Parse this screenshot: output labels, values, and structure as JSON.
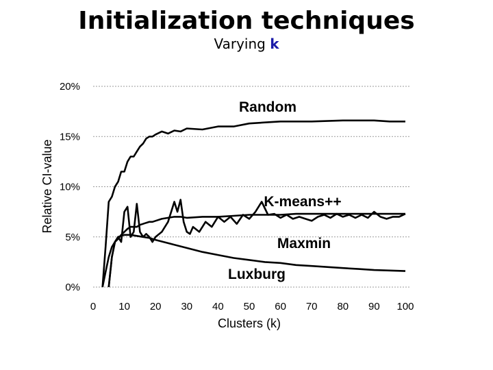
{
  "slide": {
    "title": "Initialization techniques",
    "subtitle_prefix": "Varying ",
    "subtitle_var": "k"
  },
  "chart_data": {
    "type": "line",
    "title": "",
    "xlabel": "Clusters (k)",
    "ylabel": "Relative CI-value",
    "xlim": [
      0,
      100
    ],
    "ylim": [
      0,
      20
    ],
    "xticks": [
      "0",
      "10",
      "20",
      "30",
      "40",
      "50",
      "60",
      "70",
      "80",
      "90",
      "100"
    ],
    "yticks": [
      "0%",
      "5%",
      "10%",
      "15%",
      "20%"
    ],
    "grid": "horizontal",
    "series": [
      {
        "name": "Random",
        "x": [
          3,
          4,
          5,
          6,
          7,
          8,
          9,
          10,
          11,
          12,
          13,
          14,
          15,
          16,
          17,
          18,
          19,
          20,
          22,
          24,
          26,
          28,
          30,
          35,
          40,
          45,
          50,
          55,
          60,
          70,
          80,
          90,
          95,
          100
        ],
        "values": [
          0,
          4,
          8.5,
          9,
          10,
          10.5,
          11.5,
          11.5,
          12.5,
          13,
          13,
          13.5,
          14,
          14.3,
          14.8,
          15,
          15,
          15.2,
          15.5,
          15.3,
          15.6,
          15.5,
          15.8,
          15.7,
          16,
          16,
          16.3,
          16.4,
          16.5,
          16.5,
          16.6,
          16.6,
          16.5,
          16.5
        ]
      },
      {
        "name": "K-means++",
        "x": [
          3,
          4,
          5,
          6,
          7,
          8,
          9,
          10,
          11,
          12,
          13,
          14,
          15,
          16,
          17,
          18,
          19,
          20,
          22,
          24,
          26,
          28,
          30,
          35,
          40,
          45,
          50,
          55,
          60,
          65,
          70,
          75,
          80,
          85,
          90,
          95,
          100
        ],
        "values": [
          0,
          1.5,
          3,
          4,
          4.5,
          4.8,
          5.2,
          5.5,
          5.8,
          6,
          6,
          6,
          6.2,
          6.3,
          6.4,
          6.5,
          6.5,
          6.6,
          6.8,
          6.9,
          7,
          7,
          6.9,
          7,
          7,
          7.1,
          7.2,
          7.2,
          7.2,
          7.3,
          7.3,
          7.3,
          7.3,
          7.3,
          7.3,
          7.3,
          7.3
        ]
      },
      {
        "name": "Maxmin",
        "x": [
          5,
          6,
          7,
          8,
          9,
          10,
          11,
          12,
          13,
          14,
          15,
          16,
          17,
          18,
          19,
          20,
          22,
          24,
          26,
          27,
          28,
          29,
          30,
          31,
          32,
          34,
          36,
          38,
          40,
          42,
          44,
          46,
          48,
          50,
          52,
          54,
          56,
          58,
          60,
          62,
          64,
          66,
          68,
          70,
          72,
          74,
          76,
          78,
          80,
          82,
          84,
          86,
          88,
          90,
          92,
          94,
          96,
          98,
          100
        ],
        "values": [
          0,
          3,
          4.5,
          5,
          4.5,
          7.5,
          8,
          5,
          5.5,
          8.3,
          5.5,
          5,
          5.3,
          5,
          4.5,
          5,
          5.5,
          6.5,
          8.5,
          7.5,
          8.7,
          6.5,
          5.5,
          5.3,
          6,
          5.5,
          6.5,
          6,
          7,
          6.5,
          7,
          6.3,
          7.2,
          6.8,
          7.5,
          8.5,
          7.2,
          7.3,
          6.9,
          7.2,
          6.8,
          7,
          6.8,
          6.6,
          7,
          7.2,
          6.9,
          7.3,
          7,
          7.2,
          6.9,
          7.2,
          6.9,
          7.5,
          7,
          6.8,
          7,
          7,
          7.3
        ]
      },
      {
        "name": "Luxburg",
        "x": [
          5,
          6,
          7,
          8,
          9,
          10,
          12,
          14,
          16,
          18,
          20,
          25,
          30,
          35,
          40,
          45,
          50,
          55,
          60,
          65,
          70,
          75,
          80,
          85,
          90,
          95,
          100
        ],
        "values": [
          0,
          3,
          4.5,
          5,
          5.1,
          5.2,
          5.2,
          5.1,
          5,
          4.9,
          4.7,
          4.3,
          3.9,
          3.5,
          3.2,
          2.9,
          2.7,
          2.5,
          2.4,
          2.2,
          2.1,
          2,
          1.9,
          1.8,
          1.7,
          1.65,
          1.6
        ]
      }
    ],
    "annotations": [
      {
        "text": "Random",
        "series": "Random"
      },
      {
        "text": "K-means++",
        "series": "K-means++"
      },
      {
        "text": "Maxmin",
        "series": "Maxmin"
      },
      {
        "text": "Luxburg",
        "series": "Luxburg"
      }
    ]
  }
}
